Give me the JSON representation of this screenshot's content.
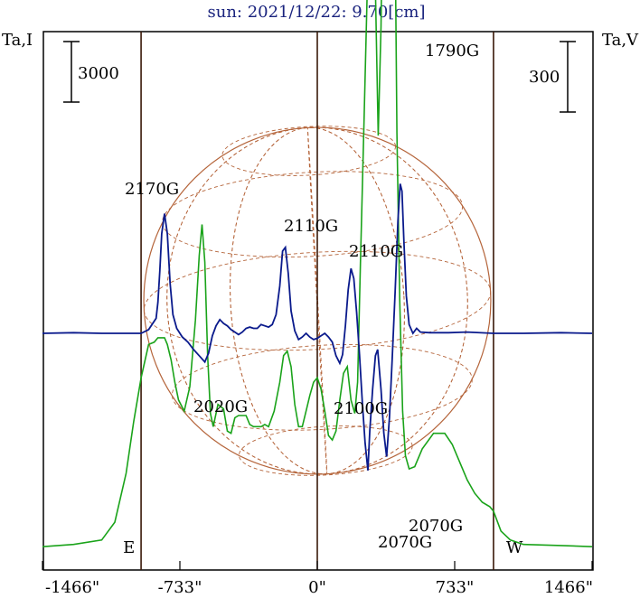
{
  "chart_data": {
    "type": "line",
    "title": "sun: 2021/12/22: 9.70[cm]",
    "colors": {
      "intensity": "#0a1a8c",
      "polarization": "#1aa31a",
      "disk": "#b5653b",
      "frame": "#000000",
      "limb_lines": "#3a1a0a",
      "title": "#1a237e"
    },
    "left_axis": {
      "label": "Ta,I",
      "scale_bar_label": "3000",
      "scale_value": 3000
    },
    "right_axis": {
      "label": "Ta,V",
      "scale_bar_label": "300",
      "scale_value": 300
    },
    "x_axis": {
      "unit": "arcsec",
      "ticks": [
        {
          "value": -1466,
          "label": "-1466\""
        },
        {
          "value": -733,
          "label": "-733\""
        },
        {
          "value": 0,
          "label": "0\""
        },
        {
          "value": 733,
          "label": "733\""
        },
        {
          "value": 1466,
          "label": "1466\""
        }
      ],
      "xlim": [
        -1466,
        1466
      ]
    },
    "limbs": [
      {
        "value": -940,
        "label": "E"
      },
      {
        "value": 0,
        "label": ""
      },
      {
        "value": 940,
        "label": "W"
      }
    ],
    "series": [
      {
        "name": "I",
        "points": [
          [
            -1466,
            0
          ],
          [
            -1300,
            0.005
          ],
          [
            -1150,
            0
          ],
          [
            -1000,
            0
          ],
          [
            -940,
            0
          ],
          [
            -900,
            0.03
          ],
          [
            -860,
            0.12
          ],
          [
            -850,
            0.25
          ],
          [
            -840,
            0.5
          ],
          [
            -830,
            0.8
          ],
          [
            -815,
            0.96
          ],
          [
            -800,
            0.8
          ],
          [
            -785,
            0.4
          ],
          [
            -770,
            0.15
          ],
          [
            -750,
            0.04
          ],
          [
            -720,
            -0.03
          ],
          [
            -690,
            -0.07
          ],
          [
            -660,
            -0.13
          ],
          [
            -630,
            -0.18
          ],
          [
            -600,
            -0.23
          ],
          [
            -580,
            -0.16
          ],
          [
            -560,
            -0.02
          ],
          [
            -540,
            0.06
          ],
          [
            -520,
            0.11
          ],
          [
            -500,
            0.08
          ],
          [
            -480,
            0.06
          ],
          [
            -460,
            0.03
          ],
          [
            -440,
            0.01
          ],
          [
            -420,
            -0.01
          ],
          [
            -400,
            0.01
          ],
          [
            -380,
            0.04
          ],
          [
            -360,
            0.05
          ],
          [
            -340,
            0.04
          ],
          [
            -320,
            0.04
          ],
          [
            -300,
            0.07
          ],
          [
            -280,
            0.06
          ],
          [
            -260,
            0.05
          ],
          [
            -240,
            0.07
          ],
          [
            -220,
            0.15
          ],
          [
            -200,
            0.38
          ],
          [
            -185,
            0.66
          ],
          [
            -170,
            0.69
          ],
          [
            -155,
            0.48
          ],
          [
            -140,
            0.18
          ],
          [
            -120,
            0.02
          ],
          [
            -100,
            -0.05
          ],
          [
            -80,
            -0.03
          ],
          [
            -60,
            0
          ],
          [
            -40,
            -0.03
          ],
          [
            -20,
            -0.05
          ],
          [
            0,
            -0.04
          ],
          [
            20,
            -0.02
          ],
          [
            40,
            0
          ],
          [
            60,
            -0.03
          ],
          [
            80,
            -0.07
          ],
          [
            100,
            -0.18
          ],
          [
            120,
            -0.24
          ],
          [
            135,
            -0.17
          ],
          [
            150,
            0.06
          ],
          [
            165,
            0.35
          ],
          [
            180,
            0.52
          ],
          [
            195,
            0.44
          ],
          [
            210,
            0.17
          ],
          [
            225,
            -0.17
          ],
          [
            240,
            -0.55
          ],
          [
            255,
            -0.88
          ],
          [
            270,
            -1.1
          ],
          [
            280,
            -0.78
          ],
          [
            295,
            -0.45
          ],
          [
            310,
            -0.18
          ],
          [
            322,
            -0.13
          ],
          [
            340,
            -0.45
          ],
          [
            355,
            -0.8
          ],
          [
            370,
            -0.99
          ],
          [
            385,
            -0.68
          ],
          [
            400,
            -0.2
          ],
          [
            415,
            0.33
          ],
          [
            430,
            0.9
          ],
          [
            442,
            1.2
          ],
          [
            452,
            1.14
          ],
          [
            462,
            0.74
          ],
          [
            475,
            0.3
          ],
          [
            490,
            0.07
          ],
          [
            510,
            0
          ],
          [
            530,
            0.04
          ],
          [
            550,
            0.01
          ],
          [
            600,
            0.005
          ],
          [
            700,
            0.005
          ],
          [
            800,
            0.01
          ],
          [
            940,
            0
          ],
          [
            1100,
            0
          ],
          [
            1300,
            0.005
          ],
          [
            1466,
            0
          ]
        ]
      },
      {
        "name": "V",
        "points": [
          [
            -1466,
            -0.96
          ],
          [
            -1300,
            -0.95
          ],
          [
            -1150,
            -0.93
          ],
          [
            -1080,
            -0.85
          ],
          [
            -1020,
            -0.63
          ],
          [
            -980,
            -0.4
          ],
          [
            -940,
            -0.2
          ],
          [
            -900,
            -0.05
          ],
          [
            -870,
            -0.04
          ],
          [
            -850,
            -0.02
          ],
          [
            -830,
            -0.02
          ],
          [
            -815,
            -0.02
          ],
          [
            -800,
            -0.05
          ],
          [
            -780,
            -0.12
          ],
          [
            -760,
            -0.22
          ],
          [
            -740,
            -0.3
          ],
          [
            -710,
            -0.35
          ],
          [
            -680,
            -0.24
          ],
          [
            -650,
            0.06
          ],
          [
            -630,
            0.35
          ],
          [
            -615,
            0.49
          ],
          [
            -600,
            0.32
          ],
          [
            -585,
            -0.1
          ],
          [
            -570,
            -0.36
          ],
          [
            -555,
            -0.42
          ],
          [
            -530,
            -0.32
          ],
          [
            -500,
            -0.34
          ],
          [
            -480,
            -0.44
          ],
          [
            -460,
            -0.45
          ],
          [
            -440,
            -0.38
          ],
          [
            -420,
            -0.37
          ],
          [
            -400,
            -0.37
          ],
          [
            -380,
            -0.37
          ],
          [
            -360,
            -0.41
          ],
          [
            -340,
            -0.42
          ],
          [
            -320,
            -0.42
          ],
          [
            -300,
            -0.42
          ],
          [
            -280,
            -0.41
          ],
          [
            -260,
            -0.42
          ],
          [
            -230,
            -0.35
          ],
          [
            -200,
            -0.22
          ],
          [
            -180,
            -0.1
          ],
          [
            -160,
            -0.08
          ],
          [
            -140,
            -0.15
          ],
          [
            -120,
            -0.32
          ],
          [
            -100,
            -0.42
          ],
          [
            -80,
            -0.42
          ],
          [
            -60,
            -0.35
          ],
          [
            -40,
            -0.28
          ],
          [
            -20,
            -0.22
          ],
          [
            0,
            -0.2
          ],
          [
            20,
            -0.25
          ],
          [
            40,
            -0.35
          ],
          [
            60,
            -0.46
          ],
          [
            80,
            -0.48
          ],
          [
            100,
            -0.44
          ],
          [
            120,
            -0.3
          ],
          [
            140,
            -0.18
          ],
          [
            160,
            -0.15
          ],
          [
            180,
            -0.3
          ],
          [
            200,
            -0.36
          ],
          [
            215,
            -0.22
          ],
          [
            230,
            0.31
          ],
          [
            250,
            0.97
          ],
          [
            265,
            1.5
          ],
          [
            280,
            2.0
          ],
          [
            295,
            2.35
          ],
          [
            310,
            1.55
          ],
          [
            325,
            0.89
          ],
          [
            340,
            1.38
          ],
          [
            355,
            2.38
          ],
          [
            370,
            3.28
          ],
          [
            385,
            3.79
          ],
          [
            395,
            3.65
          ],
          [
            410,
            2.3
          ],
          [
            425,
            0.9
          ],
          [
            440,
            0.15
          ],
          [
            455,
            -0.35
          ],
          [
            470,
            -0.55
          ],
          [
            490,
            -0.61
          ],
          [
            520,
            -0.6
          ],
          [
            560,
            -0.52
          ],
          [
            620,
            -0.45
          ],
          [
            680,
            -0.45
          ],
          [
            720,
            -0.5
          ],
          [
            760,
            -0.58
          ],
          [
            800,
            -0.66
          ],
          [
            840,
            -0.72
          ],
          [
            880,
            -0.76
          ],
          [
            920,
            -0.78
          ],
          [
            940,
            -0.8
          ],
          [
            980,
            -0.89
          ],
          [
            1030,
            -0.93
          ],
          [
            1100,
            -0.95
          ],
          [
            1300,
            -0.955
          ],
          [
            1466,
            -0.96
          ]
        ]
      }
    ],
    "annotations": [
      {
        "text": "2170G"
      },
      {
        "text": "2110G"
      },
      {
        "text": "2110G"
      },
      {
        "text": "1790G"
      },
      {
        "text": "2020G"
      },
      {
        "text": "2100G"
      },
      {
        "text": "2070G"
      },
      {
        "text": "2070G"
      }
    ]
  }
}
